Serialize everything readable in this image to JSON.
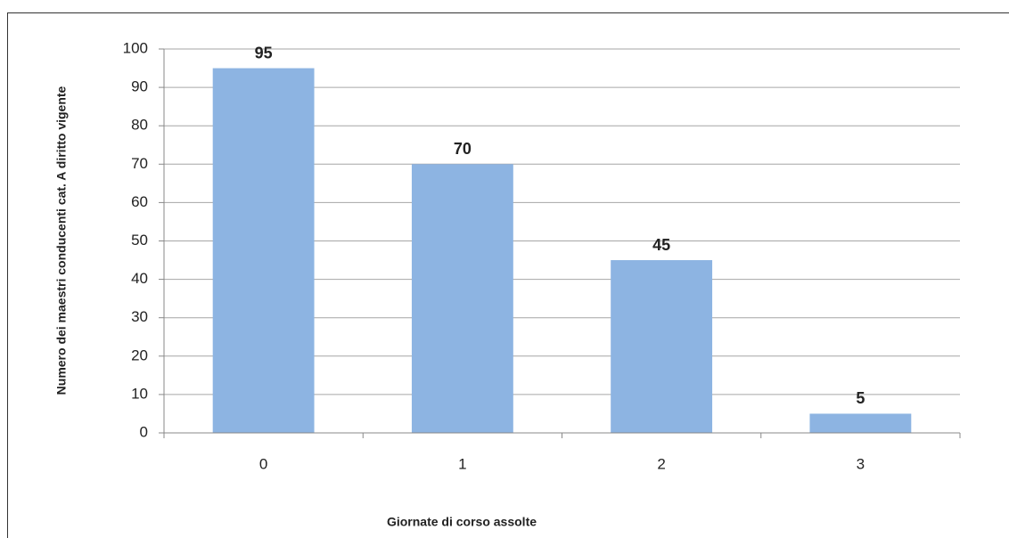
{
  "chart_data": {
    "type": "bar",
    "categories": [
      "0",
      "1",
      "2",
      "3"
    ],
    "values": [
      95,
      70,
      45,
      5
    ],
    "color": "#8db4e2",
    "xlabel": "Giornate di corso assolte",
    "ylabel": "Numero dei maestri conducenti cat. A diritto vigente",
    "ylim": [
      0,
      100
    ],
    "yticks": [
      0,
      10,
      20,
      30,
      40,
      50,
      60,
      70,
      80,
      90,
      100
    ],
    "grid": true
  }
}
